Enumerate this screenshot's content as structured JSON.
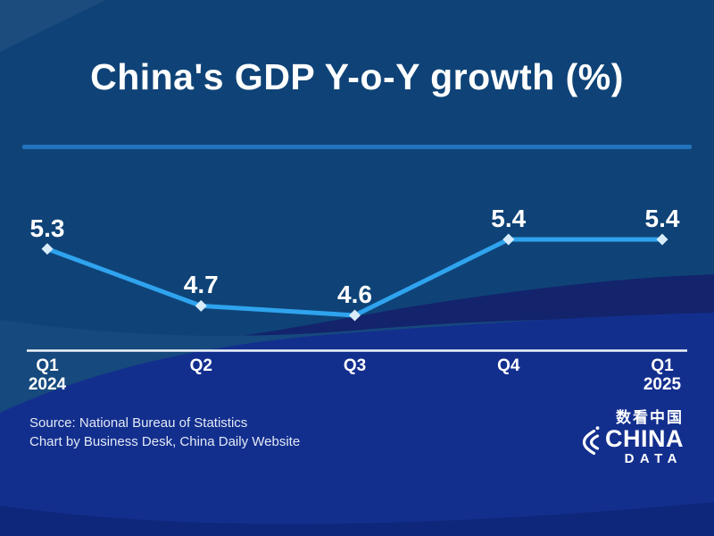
{
  "title": "China's GDP Y-o-Y growth (%)",
  "source": {
    "line1": "Source: National Bureau of Statistics",
    "line2": "Chart by Business Desk, China Daily Website"
  },
  "logo": {
    "chinese": "数看中国",
    "name": "CHINA",
    "sub": "DATA"
  },
  "colors": {
    "background": "#0F4377",
    "band_indigo": "#13246C",
    "band_steel": "#16497E",
    "band_royal": "#132F8E",
    "divider": "#2273BD",
    "line": "#2FA3EE",
    "marker": "#D8ECFA",
    "axis": "#F0F5FB",
    "text": "#FFFFFF",
    "source_text": "#E3EAF5"
  },
  "chart_data": {
    "type": "line",
    "title": "China's GDP Y-o-Y growth (%)",
    "categories": [
      {
        "label": "Q1",
        "year": "2024"
      },
      {
        "label": "Q2",
        "year": ""
      },
      {
        "label": "Q3",
        "year": ""
      },
      {
        "label": "Q4",
        "year": ""
      },
      {
        "label": "Q1",
        "year": "2025"
      }
    ],
    "values": [
      5.3,
      4.7,
      4.6,
      5.4,
      5.4
    ],
    "labels": [
      "5.3",
      "4.7",
      "4.6",
      "5.4",
      "5.4"
    ],
    "unit": "%",
    "ylim": [
      4.2,
      6.0
    ],
    "grid": false,
    "legend": false,
    "data_labels": true
  }
}
